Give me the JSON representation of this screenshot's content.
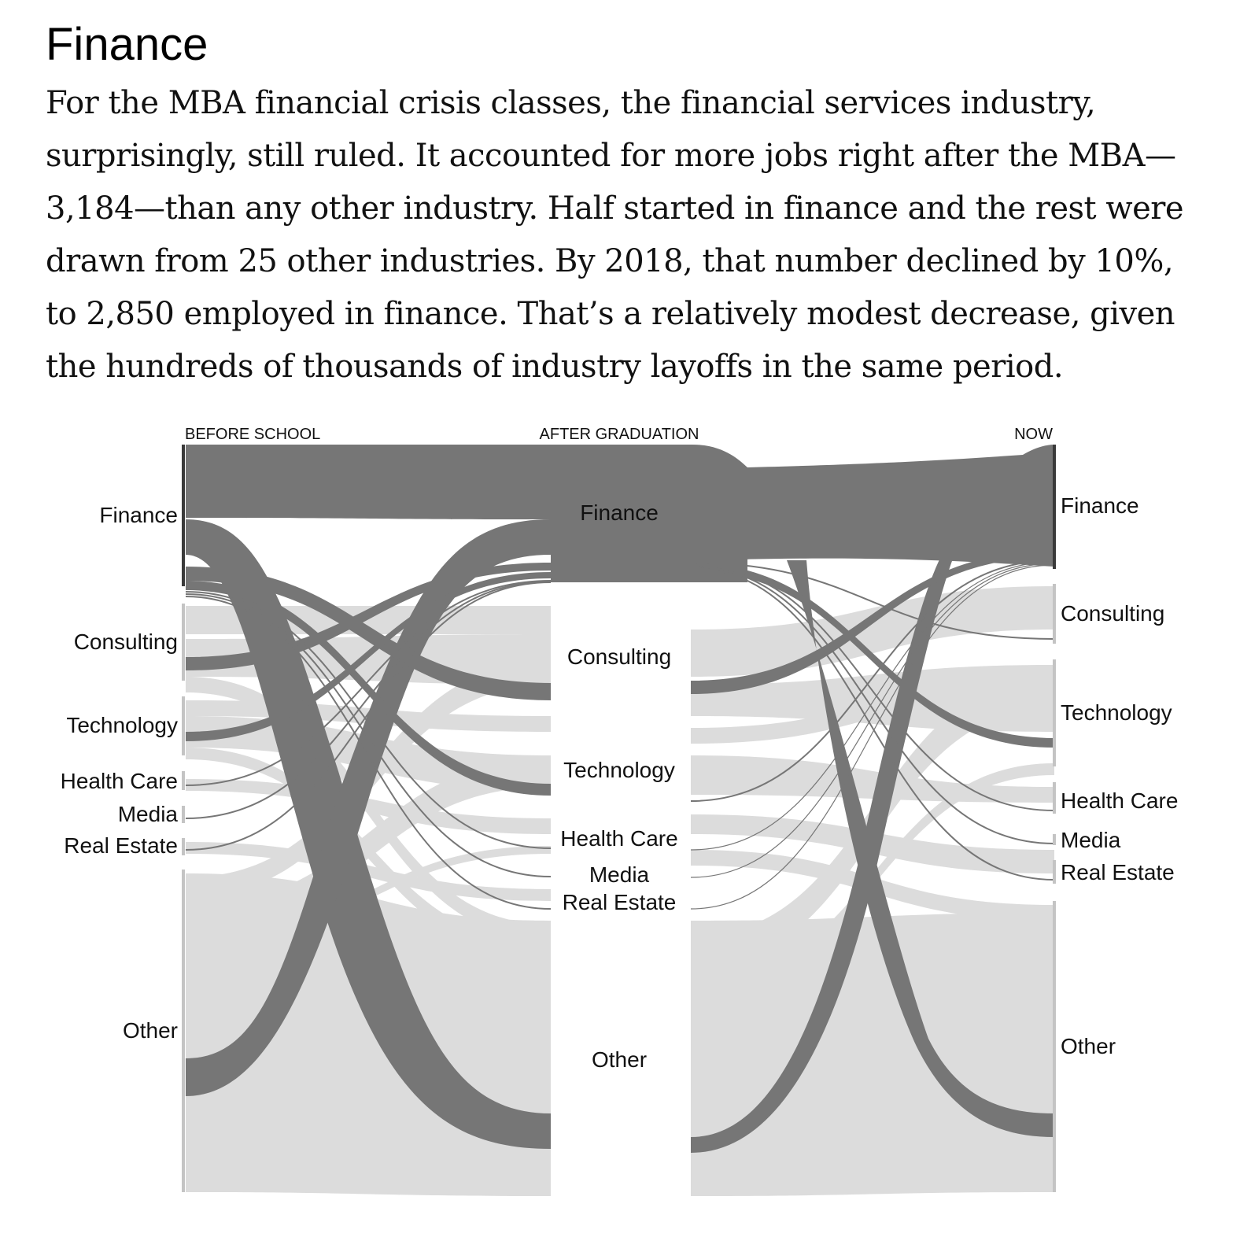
{
  "title": "Finance",
  "intro": "For the MBA financial crisis classes, the financial services industry, surprisingly, still ruled. It accounted for more jobs right after the MBA— 3,184—than any other industry. Half started in finance and the rest were drawn from 25 other industries. By 2018, that number declined by 10%, to 2,850 employed in finance. That’s a relatively modest decrease, given the hundreds of thousands of industry layoffs in the same period.",
  "columns": {
    "before": "BEFORE SCHOOL",
    "after": "AFTER GRADUATION",
    "now": "NOW"
  },
  "nodes": {
    "before": [
      "Finance",
      "Consulting",
      "Technology",
      "Health Care",
      "Media",
      "Real Estate",
      "Other"
    ],
    "after": [
      "Finance",
      "Consulting",
      "Technology",
      "Health Care",
      "Media",
      "Real Estate",
      "Other"
    ],
    "now": [
      "Finance",
      "Consulting",
      "Technology",
      "Health Care",
      "Media",
      "Real Estate",
      "Other"
    ]
  },
  "colors": {
    "highlight": "#767676",
    "context": "#dcdcdc",
    "node_bar": "#c4c4c4",
    "highlight_bar": "#3a3a3a"
  }
}
